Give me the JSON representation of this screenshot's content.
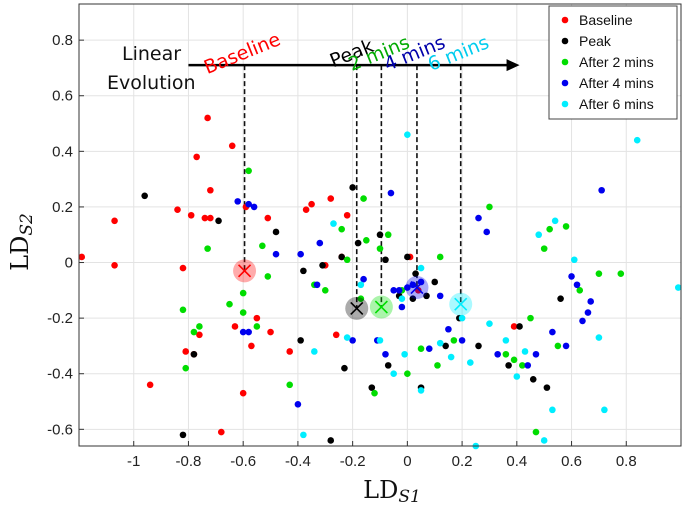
{
  "chart_data": {
    "type": "scatter",
    "title": "",
    "xlabel": "LD",
    "xlabel_sub": "S1",
    "ylabel": "LD",
    "ylabel_sub": "S2",
    "xlim": [
      -1.2,
      1.0
    ],
    "ylim": [
      -0.66,
      0.93
    ],
    "xticks": [
      -1,
      -0.8,
      -0.6,
      -0.4,
      -0.2,
      0,
      0.2,
      0.4,
      0.6,
      0.8
    ],
    "xtick_labels": [
      "-1",
      "-0.8",
      "-0.6",
      "-0.4",
      "-0.2",
      "0",
      "0.2",
      "0.4",
      "0.6",
      "0.8"
    ],
    "yticks": [
      -0.6,
      -0.4,
      -0.2,
      0,
      0.2,
      0.4,
      0.6,
      0.8
    ],
    "ytick_labels": [
      "-0.6",
      "-0.4",
      "-0.2",
      "0",
      "0.2",
      "0.4",
      "0.6",
      "0.8"
    ],
    "grid": true,
    "legend_position": "top-right",
    "series": [
      {
        "name": "Baseline",
        "color": "#ff0000",
        "x": [
          -1.19,
          -1.07,
          -1.07,
          -0.94,
          -0.84,
          -0.82,
          -0.81,
          -0.79,
          -0.78,
          -0.77,
          -0.76,
          -0.74,
          -0.73,
          -0.72,
          -0.72,
          -0.68,
          -0.64,
          -0.63,
          -0.6,
          -0.59,
          -0.57,
          -0.55,
          -0.51,
          -0.5,
          -0.43,
          -0.37,
          -0.35,
          -0.3,
          -0.28,
          -0.26,
          -0.24,
          -0.22,
          0.01,
          0.04,
          0.39
        ],
        "y": [
          0.02,
          0.15,
          -0.01,
          -0.44,
          0.19,
          -0.02,
          -0.32,
          0.17,
          -0.33,
          0.38,
          -0.26,
          0.16,
          0.52,
          0.16,
          0.26,
          -0.61,
          0.42,
          -0.23,
          -0.47,
          0.2,
          -0.3,
          -0.2,
          0.16,
          -0.25,
          -0.32,
          0.19,
          0.21,
          -0.01,
          0.23,
          -0.26,
          0.02,
          0.17,
          0.02,
          -0.1,
          -0.23
        ]
      },
      {
        "name": "Peak",
        "color": "#000000",
        "x": [
          -0.96,
          -0.82,
          -0.78,
          -0.69,
          -0.48,
          -0.39,
          -0.38,
          -0.31,
          -0.28,
          -0.24,
          -0.23,
          -0.2,
          -0.18,
          -0.13,
          -0.1,
          -0.08,
          -0.07,
          -0.03,
          0.0,
          0.02,
          0.03,
          0.05,
          0.07,
          0.1,
          0.14,
          0.19,
          0.26,
          0.37,
          0.41,
          0.46,
          0.51,
          0.56
        ],
        "y": [
          0.24,
          -0.62,
          -0.33,
          0.15,
          0.11,
          -0.28,
          -0.03,
          -0.01,
          -0.64,
          0.02,
          -0.38,
          0.27,
          0.07,
          -0.45,
          0.1,
          0.01,
          -0.37,
          -0.12,
          0.02,
          -0.13,
          -0.04,
          -0.45,
          -0.12,
          -0.07,
          -0.3,
          -0.2,
          -0.3,
          -0.37,
          -0.23,
          -0.42,
          -0.45,
          -0.13
        ]
      },
      {
        "name": "After 2 mins",
        "color": "#00dd00",
        "x": [
          -0.82,
          -0.81,
          -0.78,
          -0.76,
          -0.73,
          -0.65,
          -0.6,
          -0.6,
          -0.58,
          -0.55,
          -0.53,
          -0.51,
          -0.43,
          -0.34,
          -0.3,
          -0.24,
          -0.22,
          -0.17,
          -0.16,
          -0.15,
          -0.12,
          -0.1,
          -0.07,
          -0.02,
          0.0,
          0.05,
          0.11,
          0.12,
          0.17,
          0.3,
          0.36,
          0.39,
          0.42,
          0.45,
          0.47,
          0.5,
          0.52,
          0.55,
          0.58,
          0.63,
          0.7,
          0.78
        ],
        "y": [
          -0.17,
          -0.38,
          -0.25,
          -0.23,
          0.05,
          -0.15,
          -0.18,
          -0.11,
          0.33,
          -0.23,
          0.06,
          -0.05,
          -0.44,
          -0.08,
          -0.1,
          0.12,
          0.01,
          -0.13,
          0.23,
          0.08,
          -0.47,
          0.05,
          0.1,
          -0.1,
          -0.4,
          -0.31,
          -0.37,
          0.02,
          -0.28,
          0.2,
          -0.33,
          -0.35,
          -0.37,
          -0.2,
          -0.61,
          0.05,
          0.12,
          -0.3,
          0.13,
          -0.1,
          -0.04,
          -0.04
        ]
      },
      {
        "name": "After 4 mins",
        "color": "#0000ee",
        "x": [
          -0.62,
          -0.6,
          -0.58,
          -0.58,
          -0.56,
          -0.48,
          -0.4,
          -0.39,
          -0.33,
          -0.32,
          -0.2,
          -0.16,
          -0.11,
          -0.08,
          -0.06,
          -0.05,
          -0.03,
          -0.02,
          0.0,
          0.02,
          0.05,
          0.08,
          0.12,
          0.15,
          0.2,
          0.26,
          0.29,
          0.33,
          0.44,
          0.47,
          0.53,
          0.58,
          0.6,
          0.62,
          0.64,
          0.66,
          0.67,
          0.71
        ],
        "y": [
          0.22,
          -0.25,
          0.21,
          -0.25,
          0.2,
          0.03,
          -0.51,
          0.03,
          -0.08,
          0.07,
          -0.28,
          -0.06,
          -0.28,
          -0.33,
          0.25,
          -0.1,
          -0.1,
          -0.16,
          -0.09,
          -0.08,
          -0.07,
          -0.31,
          -0.12,
          -0.24,
          -0.28,
          0.16,
          0.11,
          -0.33,
          -0.37,
          -0.33,
          -0.25,
          -0.3,
          -0.05,
          -0.08,
          -0.21,
          -0.18,
          -0.14,
          0.26
        ]
      },
      {
        "name": "After 6 mins",
        "color": "#00eeff",
        "x": [
          -0.38,
          -0.34,
          -0.27,
          -0.22,
          -0.17,
          -0.1,
          -0.05,
          -0.02,
          -0.01,
          0.0,
          0.05,
          0.05,
          0.12,
          0.16,
          0.2,
          0.23,
          0.25,
          0.3,
          0.36,
          0.4,
          0.43,
          0.48,
          0.5,
          0.53,
          0.54,
          0.61,
          0.7,
          0.72,
          0.84,
          0.99
        ],
        "y": [
          -0.62,
          -0.32,
          0.14,
          -0.27,
          -0.08,
          -0.28,
          -0.4,
          -0.13,
          -0.33,
          0.46,
          -0.02,
          -0.46,
          -0.29,
          -0.34,
          -0.2,
          -0.36,
          -0.66,
          -0.22,
          -0.28,
          -0.41,
          -0.32,
          0.1,
          -0.64,
          -0.53,
          0.15,
          0.01,
          -0.27,
          -0.53,
          0.44,
          -0.09
        ]
      }
    ],
    "centroids": [
      {
        "series": "Baseline",
        "color": "#ff0000",
        "x": -0.595,
        "y": -0.03
      },
      {
        "series": "Peak",
        "color": "#000000",
        "x": -0.185,
        "y": -0.165
      },
      {
        "series": "After 2 mins",
        "color": "#00dd00",
        "x": -0.095,
        "y": -0.16
      },
      {
        "series": "After 4 mins",
        "color": "#0000ee",
        "x": 0.035,
        "y": -0.09
      },
      {
        "series": "After 6 mins",
        "color": "#00eeff",
        "x": 0.195,
        "y": -0.15
      }
    ],
    "annotations": {
      "title_line1": "Linear",
      "title_line2": "Evolution",
      "arrow": {
        "x_start": -0.8,
        "x_end": 0.41,
        "y": 0.71
      },
      "labels": [
        {
          "text": "Baseline",
          "color": "#ff0000",
          "x": -0.595,
          "rotation": -22
        },
        {
          "text": "Peak",
          "color": "#000000",
          "x": -0.195,
          "rotation": -22
        },
        {
          "text": "2 mins",
          "color": "#00aa00",
          "x": -0.095,
          "rotation": -22
        },
        {
          "text": "4 mins",
          "color": "#0000aa",
          "x": 0.035,
          "rotation": -22
        },
        {
          "text": "6 mins",
          "color": "#00ccee",
          "x": 0.195,
          "rotation": -22
        }
      ]
    }
  }
}
